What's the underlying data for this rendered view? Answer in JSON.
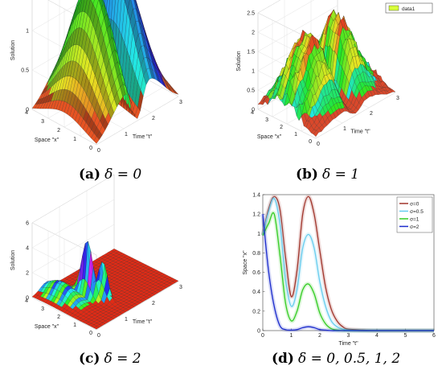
{
  "legend_b": "data1",
  "captions": {
    "a": {
      "label": "(a)",
      "text": "δ = 0"
    },
    "b": {
      "label": "(b)",
      "text": "δ = 1"
    },
    "c": {
      "label": "(c)",
      "text": "δ = 2"
    },
    "d": {
      "label": "(d)",
      "text": "δ = 0, 0.5, 1, 2"
    }
  },
  "chart_data": [
    {
      "id": "a",
      "type": "surface",
      "zlabel": "Solution",
      "ylabel": "Space \"x\"",
      "xlabel": "Time \"t\"",
      "x_ticks": [
        "0",
        "1",
        "2",
        "3"
      ],
      "y_ticks": [
        "0",
        "1",
        "2",
        "3",
        "4"
      ],
      "z_ticks": [
        "0",
        "0.5",
        "1",
        "1.5"
      ],
      "xlim": [
        0,
        3
      ],
      "ylim": [
        0,
        4
      ],
      "zlim": [
        0,
        1.5
      ]
    },
    {
      "id": "b",
      "type": "surface",
      "zlabel": "Solution",
      "ylabel": "Space \"x\"",
      "xlabel": "Time \"t\"",
      "x_ticks": [
        "0",
        "1",
        "2",
        "3"
      ],
      "y_ticks": [
        "0",
        "1",
        "2",
        "3",
        "4"
      ],
      "z_ticks": [
        "0",
        "0.5",
        "1",
        "1.5",
        "2",
        "2.5"
      ],
      "xlim": [
        0,
        3
      ],
      "ylim": [
        0,
        4
      ],
      "zlim": [
        0,
        2.5
      ],
      "legend": [
        "data1"
      ]
    },
    {
      "id": "c",
      "type": "surface",
      "zlabel": "Solution",
      "ylabel": "Space \"x\"",
      "xlabel": "Time \"t\"",
      "x_ticks": [
        "0",
        "1",
        "2",
        "3"
      ],
      "y_ticks": [
        "0",
        "1",
        "2",
        "3",
        "4"
      ],
      "z_ticks": [
        "0",
        "2",
        "4",
        "6"
      ],
      "xlim": [
        0,
        3
      ],
      "ylim": [
        0,
        4
      ],
      "zlim": [
        0,
        6
      ]
    },
    {
      "id": "d",
      "type": "line",
      "xlabel": "Time \"t\"",
      "ylabel": "Space \"x\"",
      "xlim": [
        0,
        6
      ],
      "ylim": [
        0,
        1.4
      ],
      "x_ticks": [
        "0",
        "1",
        "2",
        "3",
        "4",
        "5",
        "6"
      ],
      "y_ticks": [
        "0",
        "0.2",
        "0.4",
        "0.6",
        "0.8",
        "1",
        "1.2",
        "1.4"
      ],
      "legend_placement": "top-right",
      "x": [
        0,
        0.2,
        0.4,
        0.6,
        0.8,
        1.0,
        1.2,
        1.4,
        1.6,
        1.8,
        2.0,
        2.2,
        2.4,
        2.6,
        2.8,
        3.0,
        3.5,
        4,
        5,
        6
      ],
      "series": [
        {
          "name": "σ=0",
          "color": "#a0342a",
          "values": [
            0.98,
            1.25,
            1.38,
            1.25,
            0.75,
            0.35,
            0.62,
            1.2,
            1.38,
            1.2,
            0.82,
            0.45,
            0.22,
            0.1,
            0.04,
            0.015,
            0.005,
            0.0,
            0.0,
            0.0
          ]
        },
        {
          "name": "σ=0.5",
          "color": "#66ccee",
          "values": [
            0.98,
            1.22,
            1.36,
            1.1,
            0.52,
            0.25,
            0.42,
            0.85,
            0.99,
            0.85,
            0.5,
            0.25,
            0.1,
            0.04,
            0.015,
            0.005,
            0.0,
            0.0,
            0.0,
            0.0
          ]
        },
        {
          "name": "σ=1",
          "color": "#33cc22",
          "values": [
            0.98,
            1.1,
            1.2,
            0.78,
            0.28,
            0.1,
            0.2,
            0.42,
            0.48,
            0.38,
            0.18,
            0.07,
            0.02,
            0.005,
            0.0,
            0.0,
            0.0,
            0.0,
            0.0,
            0.0
          ]
        },
        {
          "name": "σ=2",
          "color": "#1a2acc",
          "values": [
            1.2,
            0.62,
            0.25,
            0.05,
            0.01,
            0.005,
            0.01,
            0.03,
            0.04,
            0.03,
            0.01,
            0.005,
            0.0,
            0.0,
            0.0,
            0.0,
            0.0,
            0.0,
            0.0,
            0.0
          ]
        }
      ]
    }
  ]
}
